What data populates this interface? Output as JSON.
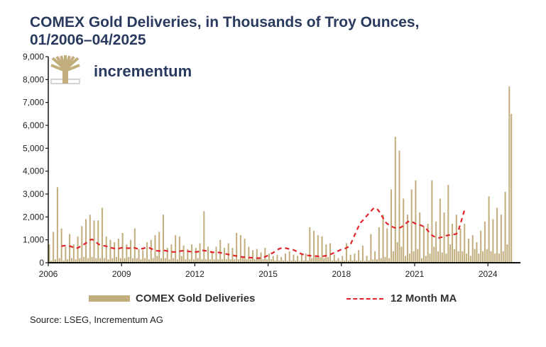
{
  "chart_data": {
    "type": "bar",
    "title": "COMEX Gold Deliveries, in Thousands of Troy Ounces,",
    "subtitle": "01/2006–04/2025",
    "xlabel": "",
    "ylabel": "",
    "ylim": [
      0,
      9000
    ],
    "xlim": [
      "2006-01",
      "2025-04"
    ],
    "y_ticks": [
      "0",
      "1,000",
      "2,000",
      "3,000",
      "4,000",
      "5,000",
      "6,000",
      "7,000",
      "8,000",
      "9,000"
    ],
    "y_tick_values": [
      0,
      1000,
      2000,
      3000,
      4000,
      5000,
      6000,
      7000,
      8000,
      9000
    ],
    "x_ticks": [
      "2006",
      "2009",
      "2012",
      "2015",
      "2018",
      "2021",
      "2024"
    ],
    "x_tick_years": [
      2006,
      2009,
      2012,
      2015,
      2018,
      2021,
      2024
    ],
    "grid": false,
    "legend_position": "bottom",
    "start_year": 2006,
    "start_month": 1,
    "series": [
      {
        "name": "COMEX Gold Deliveries",
        "type": "bar",
        "color": "#c2ad7c",
        "values": [
          800,
          100,
          1350,
          150,
          3300,
          200,
          1500,
          100,
          700,
          150,
          1250,
          200,
          800,
          150,
          1150,
          200,
          1600,
          250,
          1900,
          200,
          2100,
          250,
          1850,
          200,
          1850,
          200,
          2400,
          200,
          1150,
          150,
          1000,
          200,
          900,
          250,
          1050,
          200,
          1300,
          200,
          800,
          250,
          1000,
          200,
          1500,
          200,
          600,
          150,
          550,
          200,
          900,
          150,
          1000,
          200,
          1200,
          300,
          1350,
          200,
          2100,
          200,
          650,
          150,
          800,
          200,
          1200,
          150,
          1150,
          300,
          750,
          150,
          600,
          150,
          800,
          150,
          650,
          200,
          850,
          150,
          2250,
          150,
          700,
          150,
          500,
          150,
          700,
          150,
          1000,
          150,
          650,
          150,
          850,
          150,
          650,
          150,
          1300,
          150,
          1200,
          250,
          1050,
          150,
          700,
          150,
          550,
          150,
          600,
          200,
          450,
          150,
          650,
          150,
          400,
          150,
          300,
          100,
          350,
          100,
          250,
          100,
          400,
          80,
          500,
          100,
          350,
          100,
          300,
          80,
          350,
          100,
          400,
          100,
          1550,
          200,
          1400,
          300,
          1200,
          250,
          1150,
          200,
          800,
          250,
          850,
          100,
          350,
          100,
          200,
          80,
          300,
          100,
          850,
          100,
          350,
          100,
          400,
          100,
          550,
          100,
          750,
          80,
          300,
          100,
          1250,
          150,
          500,
          150,
          1550,
          200,
          2100,
          250,
          1500,
          200,
          3200,
          500,
          5500,
          900,
          4900,
          700,
          2800,
          300,
          2100,
          400,
          3200,
          500,
          3600,
          600,
          2200,
          200,
          1600,
          300,
          1700,
          400,
          3600,
          700,
          1800,
          500,
          2800,
          450,
          2200,
          400,
          3400,
          800,
          1700,
          600,
          2100,
          500,
          1500,
          500,
          1700,
          400,
          1050,
          300,
          1200,
          600,
          900,
          400,
          1400,
          500,
          1800,
          600,
          2900,
          500,
          1900,
          400,
          2400,
          400,
          2100,
          500,
          3100,
          800,
          7700,
          6500
        ]
      },
      {
        "name": "12 Month MA",
        "type": "line",
        "style": "dashed",
        "color": "#e0242a",
        "start_index": 6,
        "values": [
          720,
          740,
          750,
          760,
          730,
          700,
          660,
          630,
          650,
          700,
          760,
          800,
          860,
          920,
          990,
          1020,
          980,
          900,
          820,
          780,
          760,
          740,
          720,
          690,
          660,
          640,
          620,
          600,
          620,
          640,
          660,
          650,
          640,
          630,
          650,
          680,
          650,
          620,
          600,
          600,
          620,
          650,
          660,
          650,
          620,
          580,
          540,
          520,
          510,
          520,
          540,
          530,
          510,
          490,
          480,
          470,
          470,
          480,
          500,
          520,
          520,
          510,
          500,
          490,
          480,
          470,
          470,
          480,
          520,
          540,
          530,
          520,
          500,
          480,
          460,
          450,
          440,
          450,
          440,
          420,
          400,
          380,
          360,
          350,
          330,
          310,
          290,
          270,
          260,
          250,
          240,
          240,
          230,
          220,
          220,
          210,
          200,
          200,
          210,
          230,
          260,
          300,
          350,
          400,
          440,
          500,
          560,
          610,
          640,
          650,
          640,
          620,
          600,
          580,
          560,
          520,
          470,
          420,
          380,
          350,
          330,
          320,
          310,
          300,
          290,
          290,
          280,
          270,
          280,
          290,
          310,
          330,
          360,
          400,
          440,
          480,
          520,
          560,
          590,
          610,
          650,
          700,
          800,
          1000,
          1200,
          1400,
          1600,
          1750,
          1850,
          1950,
          2050,
          2150,
          2250,
          2350,
          2400,
          2350,
          2250,
          2100,
          1950,
          1800,
          1700,
          1650,
          1600,
          1550,
          1520,
          1500,
          1520,
          1560,
          1620,
          1700,
          1780,
          1820,
          1800,
          1750,
          1700,
          1680,
          1650,
          1620,
          1580,
          1500,
          1400,
          1300,
          1200,
          1150,
          1100,
          1080,
          1100,
          1120,
          1150,
          1180,
          1200,
          1220,
          1230,
          1240,
          1260,
          1400,
          1700,
          2000,
          2300
        ]
      }
    ]
  },
  "logo": {
    "name": "incrementum",
    "icon": "tree-logo-icon"
  },
  "legend": {
    "bars_label": "COMEX Gold Deliveries",
    "line_label": "12 Month MA"
  },
  "source": "Source: LSEG, Incrementum AG"
}
